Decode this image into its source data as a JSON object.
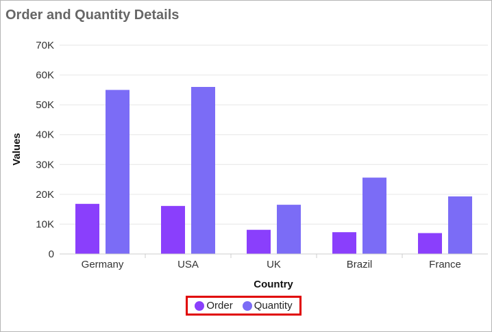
{
  "chart_data": {
    "type": "bar",
    "title": "Order and Quantity Details",
    "xlabel": "Country",
    "ylabel": "Values",
    "categories": [
      "Germany",
      "USA",
      "UK",
      "Brazil",
      "France"
    ],
    "series": [
      {
        "name": "Order",
        "color": "#8a3ffc",
        "values": [
          16800,
          16100,
          8100,
          7300,
          7000
        ]
      },
      {
        "name": "Quantity",
        "color": "#7b6cf6",
        "values": [
          55000,
          56000,
          16500,
          25600,
          19300
        ]
      }
    ],
    "ylim": [
      0,
      70000
    ],
    "yticks": [
      0,
      10000,
      20000,
      30000,
      40000,
      50000,
      60000,
      70000
    ],
    "ytick_labels": [
      "0",
      "10K",
      "20K",
      "30K",
      "40K",
      "50K",
      "60K",
      "70K"
    ],
    "grid": true,
    "legend_position": "bottom-center"
  }
}
